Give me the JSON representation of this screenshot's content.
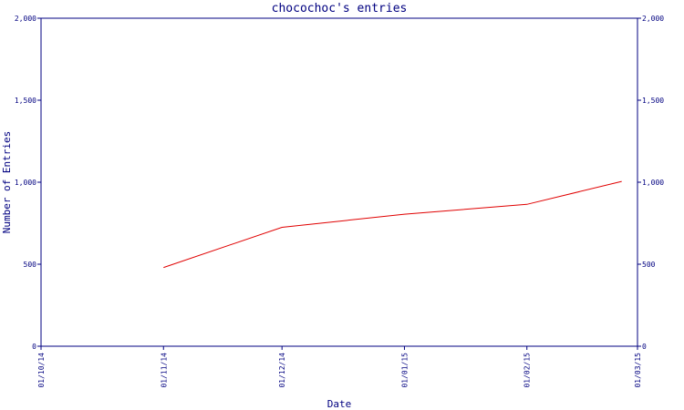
{
  "chart_data": {
    "type": "line",
    "title": "chocochoc's entries",
    "xlabel": "Date",
    "ylabel": "Number of Entries",
    "x_ticks": [
      "01/10/14",
      "01/11/14",
      "01/12/14",
      "01/01/15",
      "01/02/15",
      "01/03/15"
    ],
    "y_ticks": [
      "0",
      "500",
      "1,000",
      "1,500",
      "2,000"
    ],
    "y_tick_values": [
      0,
      500,
      1000,
      1500,
      2000
    ],
    "ylim": [
      0,
      2000
    ],
    "xlim": [
      "2014-10-01",
      "2015-03-01"
    ],
    "series": [
      {
        "color": "#e00000",
        "points": [
          {
            "x": "2014-11-01",
            "y": 480
          },
          {
            "x": "2014-12-01",
            "y": 725
          },
          {
            "x": "2015-01-01",
            "y": 805
          },
          {
            "x": "2015-02-01",
            "y": 865
          },
          {
            "x": "2015-02-25",
            "y": 1005
          }
        ]
      }
    ],
    "grid": false,
    "axis_color": "#000080"
  }
}
